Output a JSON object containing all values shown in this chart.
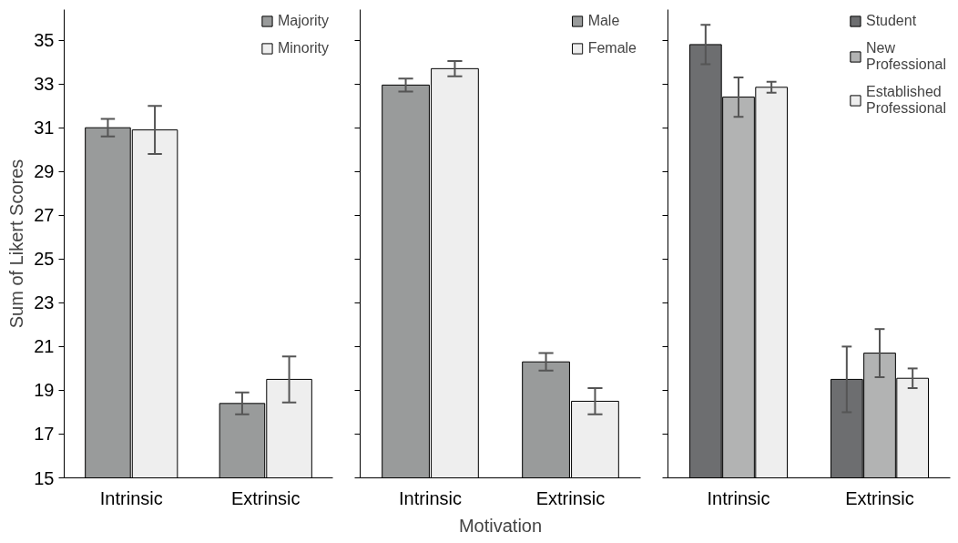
{
  "chart_data": [
    {
      "type": "bar",
      "ylabel": "Sum of Likert Scores",
      "categories": [
        "Intrinsic",
        "Extrinsic"
      ],
      "ylim": [
        15,
        36.4
      ],
      "yticks": [
        15,
        17,
        19,
        21,
        23,
        25,
        27,
        29,
        31,
        33,
        35
      ],
      "grid": false,
      "legend": "top right",
      "series": [
        {
          "name": "Majority",
          "color": "#999b9b",
          "values": [
            31.0,
            18.4
          ],
          "errors": [
            0.4,
            0.5
          ]
        },
        {
          "name": "Minority",
          "color": "#eeeeee",
          "values": [
            30.9,
            19.5
          ],
          "errors": [
            1.1,
            1.05
          ]
        }
      ]
    },
    {
      "type": "bar",
      "xlabel": "Motivation",
      "categories": [
        "Intrinsic",
        "Extrinsic"
      ],
      "ylim": [
        15,
        36.4
      ],
      "yticks": [
        15,
        17,
        19,
        21,
        23,
        25,
        27,
        29,
        31,
        33,
        35
      ],
      "tick_labels": "x",
      "grid": false,
      "legend": "top right",
      "series": [
        {
          "name": "Male",
          "color": "#999b9b",
          "values": [
            32.95,
            20.3
          ],
          "errors": [
            0.3,
            0.4
          ]
        },
        {
          "name": "Female",
          "color": "#eeeeee",
          "values": [
            33.7,
            18.5
          ],
          "errors": [
            0.35,
            0.6
          ]
        }
      ]
    },
    {
      "type": "bar",
      "categories": [
        "Intrinsic",
        "Extrinsic"
      ],
      "ylim": [
        15,
        36.4
      ],
      "yticks": [
        15,
        17,
        19,
        21,
        23,
        25,
        27,
        29,
        31,
        33,
        35
      ],
      "tick_labels": "x",
      "grid": false,
      "legend": "top right",
      "series": [
        {
          "name": "Student",
          "color": "#6d6e70",
          "values": [
            34.8,
            19.5
          ],
          "errors": [
            0.9,
            1.5
          ]
        },
        {
          "name": "New Professional",
          "color": "#b2b3b3",
          "values": [
            32.4,
            20.7
          ],
          "errors": [
            0.9,
            1.1
          ]
        },
        {
          "name": "Established Professional",
          "color": "#eeeeee",
          "values": [
            32.85,
            19.55
          ],
          "errors": [
            0.25,
            0.45
          ]
        }
      ]
    }
  ]
}
